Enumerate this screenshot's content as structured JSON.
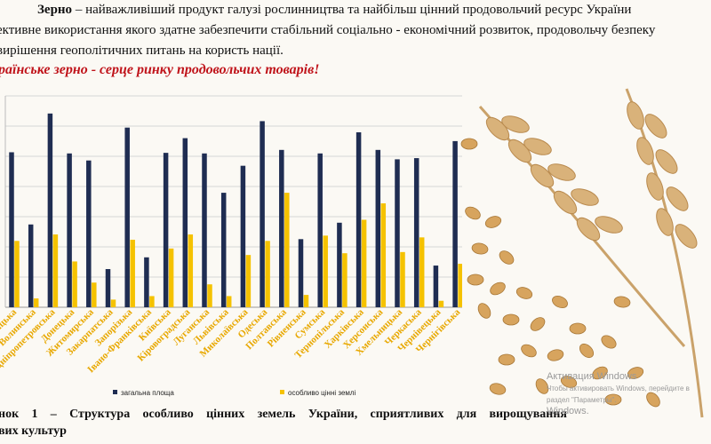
{
  "intro": {
    "term": "Зерно",
    "line1_rest": " – найважливіший продукт галузі рослинництва та найбільш цінний продовольчий ресурс України",
    "line2": "ективне використання якого здатне забезпечити стабільний соціально - економічний розвиток, продовольчу безпеку",
    "line3": "вирішення геополітичних питань на користь нації."
  },
  "headline": "раїнське  зерно - серце ринку продовольчих товарів!",
  "caption": {
    "line1": "нок 1 – Структура особливо цінних земель України, сприятливих для вирощування",
    "line2": "вих культур"
  },
  "watermark": {
    "title": "Активация Windows",
    "subtitle": "Чтобы активировать Windows, перейдите в раздел \"Параметры\".",
    "trail": "Windows."
  },
  "colors": {
    "total": "#1f2d52",
    "valuable": "#f5c200",
    "tick_label": "#e8a800",
    "headline": "#c0141b"
  },
  "chart_data": {
    "type": "bar",
    "categories": [
      "нницька",
      "Волинська",
      "Дніпропетровська",
      "Донецька",
      "Житомирська",
      "Закарпатська",
      "Запорізька",
      "Івано-Франківська",
      "Київська",
      "Кіровоградська",
      "Луганська",
      "Львівська",
      "Миколаївська",
      "Одеська",
      "Полтавська",
      "Рівненська",
      "Сумська",
      "Тернопільська",
      "Харківська",
      "Херсонська",
      "Хмельницька",
      "Черкаська",
      "Чернівецька",
      "Чернігівська"
    ],
    "series": [
      {
        "name": "загальна площа",
        "values": [
          2.64,
          1.41,
          3.3,
          2.62,
          2.5,
          0.65,
          3.06,
          0.85,
          2.63,
          2.88,
          2.62,
          1.95,
          2.41,
          3.17,
          2.68,
          1.16,
          2.62,
          1.44,
          2.98,
          2.68,
          2.52,
          2.54,
          0.71,
          2.83
        ]
      },
      {
        "name": "особливо цінні землі",
        "values": [
          1.13,
          0.15,
          1.24,
          0.78,
          0.42,
          0.13,
          1.15,
          0.19,
          1.0,
          1.24,
          0.39,
          0.19,
          0.89,
          1.13,
          1.95,
          0.21,
          1.22,
          0.92,
          1.49,
          1.77,
          0.94,
          1.19,
          0.11,
          0.74
        ]
      }
    ],
    "ylim": [
      0,
      3.6
    ],
    "grid": true,
    "legend": "bottom"
  }
}
